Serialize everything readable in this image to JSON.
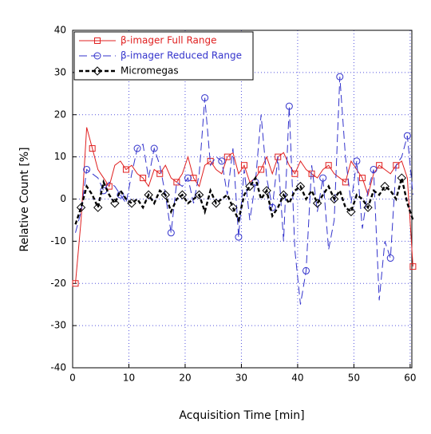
{
  "chart_data": {
    "type": "line",
    "x_label": "Acquisition Time [min]",
    "y_label": "Relative Count [%]",
    "x": [
      0.5,
      1.5,
      2.5,
      3.5,
      4.5,
      5.5,
      6.5,
      7.5,
      8.5,
      9.5,
      10.5,
      11.5,
      12.5,
      13.5,
      14.5,
      15.5,
      16.5,
      17.5,
      18.5,
      19.5,
      20.5,
      21.5,
      22.5,
      23.5,
      24.5,
      25.5,
      26.5,
      27.5,
      28.5,
      29.5,
      30.5,
      31.5,
      32.5,
      33.5,
      34.5,
      35.5,
      36.5,
      37.5,
      38.5,
      39.5,
      40.5,
      41.5,
      42.5,
      43.5,
      44.5,
      45.5,
      46.5,
      47.5,
      48.5,
      49.5,
      50.5,
      51.5,
      52.5,
      53.5,
      54.5,
      55.5,
      56.5,
      57.5,
      58.5,
      59.5,
      60.5
    ],
    "series": [
      {
        "name": "β-imager Full Range",
        "color": "#e02020",
        "line_style": "solid",
        "marker": "square",
        "values": [
          -20,
          -5,
          17,
          12,
          7,
          5,
          3,
          8,
          9,
          7,
          8,
          6,
          5,
          3,
          7,
          6,
          8,
          5,
          4,
          6,
          10,
          5,
          3,
          8,
          9,
          7,
          6,
          10,
          11,
          6,
          8,
          4,
          5,
          7,
          10,
          6,
          10,
          11,
          8,
          6,
          9,
          7,
          6,
          5,
          7,
          8,
          6,
          5,
          4,
          9,
          7,
          5,
          1,
          6,
          8,
          7,
          6,
          8,
          9,
          5,
          -16
        ]
      },
      {
        "name": "β-imager Reduced Range",
        "color": "#3333cc",
        "line_style": "dashed",
        "marker": "circle",
        "values": [
          -8,
          -3,
          7,
          6,
          5,
          2,
          4,
          3,
          1,
          -1,
          6,
          12,
          13,
          5,
          12,
          8,
          1,
          -8,
          4,
          3,
          5,
          -1,
          6,
          24,
          8,
          10,
          9,
          1,
          12,
          -9,
          7,
          -5,
          4,
          20,
          5,
          -2,
          10,
          -10,
          22,
          -12,
          -25,
          -17,
          8,
          -3,
          5,
          -12,
          -5,
          29,
          10,
          -1,
          9,
          -7,
          2,
          7,
          -24,
          -10,
          -14,
          8,
          10,
          15,
          1
        ]
      },
      {
        "name": "Micromegas",
        "color": "#000000",
        "line_style": "bold-dashed",
        "marker": "diamond",
        "values": [
          -6,
          -2,
          3,
          1,
          -2,
          4,
          1,
          -1,
          2,
          0,
          -1,
          0,
          -2,
          1,
          -1,
          2,
          1,
          -3,
          0,
          1,
          -1,
          0,
          1,
          -3,
          2,
          -1,
          0,
          1,
          -2,
          -5,
          1,
          3,
          5,
          0,
          2,
          -4,
          -2,
          1,
          -1,
          2,
          3,
          0,
          2,
          -1,
          1,
          3,
          0,
          2,
          -2,
          -3,
          1,
          0,
          -2,
          2,
          1,
          3,
          2,
          0,
          5,
          -1,
          -5
        ]
      }
    ],
    "xlim": [
      0,
      60.3
    ],
    "ylim": [
      -40,
      40
    ],
    "xticks": [
      0,
      10,
      20,
      30,
      40,
      50,
      60
    ],
    "yticks": [
      -40,
      -30,
      -20,
      -10,
      0,
      10,
      20,
      30,
      40
    ],
    "grid": true,
    "legend": "upper left"
  }
}
